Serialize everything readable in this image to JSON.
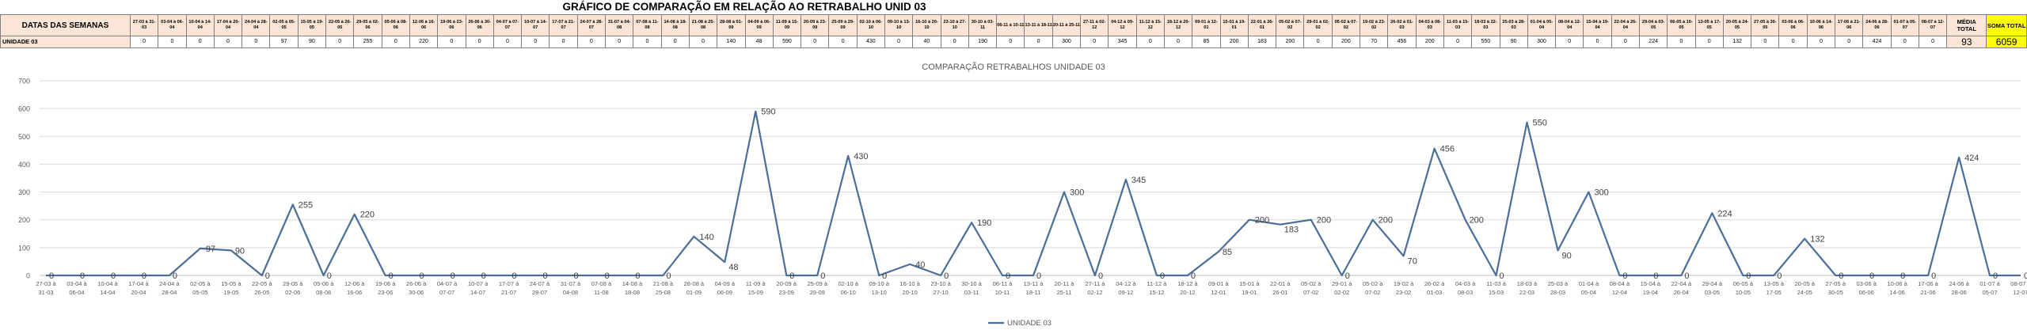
{
  "page_title": "GRÁFICO DE COMPARAÇÃO EM RELAÇÃO AO RETRABALHO UNID 03",
  "table": {
    "header_label": "DATAS DAS SEMANAS",
    "row_label": "UNIDADE 03",
    "media_label": "MÉDIA TOTAL",
    "media_value": "93",
    "soma_label": "SOMA TOTAL",
    "soma_value": "6059"
  },
  "colors": {
    "line": "#4a6e9a",
    "grid": "#d9d9d9",
    "axis_text": "#595959"
  },
  "chart_data": {
    "type": "line",
    "title": "COMPARAÇÃO RETRABALHOS UNIDADE 03",
    "xlabel": "",
    "ylabel": "",
    "ylim": [
      0,
      700
    ],
    "yticks": [
      0,
      100,
      200,
      300,
      400,
      500,
      600,
      700
    ],
    "grid": true,
    "legend": "bottom",
    "categories": [
      "27-03 à 31-03",
      "03-04 à 06-04",
      "10-04 à 14-04",
      "17-04 à 20-04",
      "24-04 à 28-04",
      "02-05 à 05-05",
      "15-05 à 19-05",
      "22-05 à 26-05",
      "29-05 à 02-06",
      "05-06 à 08-06",
      "12-06 à 16-06",
      "19-06 à 23-06",
      "26-06 à 30-06",
      "04-07 à 07-07",
      "10-07 à 14-07",
      "17-07 à 21-07",
      "24-07 à 28-07",
      "31-07 à 04-08",
      "07-08 à 11-08",
      "14-08 à 18-08",
      "21-08 à 25-08",
      "28-08 à 01-09",
      "04-09 à 06-09",
      "11-09 à 15-09",
      "20-09 à 23-09",
      "25-09 à 29-09",
      "02-10 à 06-10",
      "09-10 à 13-10",
      "16-10 à 20-10",
      "23-10 à 27-10",
      "30-10 à 03-11",
      "06-11 à 10-11",
      "13-11 à 18-11",
      "20-11 à 25-11",
      "27-11 à 02-12",
      "04-12 à 09-12",
      "11-12 à 15-12",
      "18-12 à 20-12",
      "09-01 à 12-01",
      "15-01 à 19-01",
      "22-01 à 26-01",
      "05-02 à 07-02",
      "29-01 à 02-02",
      "05-02 à 07-02",
      "19-02 à 23-02",
      "26-02 à 01-03",
      "04-03 à 08-03",
      "11-03 à 15-03",
      "18-03 à 22-03",
      "25-03 à 28-03",
      "01-04 à 05-04",
      "08-04 à 12-04",
      "15-04 à 19-04",
      "22-04 à 26-04",
      "29-04 à 03-05",
      "06-05 à 10-05",
      "13-05 à 17-05",
      "20-05 à 24-05",
      "27-05 à 30-05",
      "03-06 à 06-06",
      "10-06 à 14-06",
      "17-06 à 21-06",
      "24-06 à 28-06",
      "01-07 à 05-07",
      "08-07 à 12-07"
    ],
    "series": [
      {
        "name": "UNIDADE 03",
        "values": [
          0,
          0,
          0,
          0,
          0,
          97,
          90,
          0,
          255,
          0,
          220,
          0,
          0,
          0,
          0,
          0,
          0,
          0,
          0,
          0,
          0,
          140,
          48,
          590,
          0,
          0,
          430,
          0,
          40,
          0,
          190,
          0,
          0,
          300,
          0,
          345,
          0,
          0,
          85,
          200,
          183,
          200,
          0,
          200,
          70,
          456,
          200,
          0,
          550,
          90,
          300,
          0,
          0,
          0,
          224,
          0,
          0,
          132,
          0,
          0,
          0,
          0,
          424,
          0,
          0
        ]
      }
    ]
  }
}
